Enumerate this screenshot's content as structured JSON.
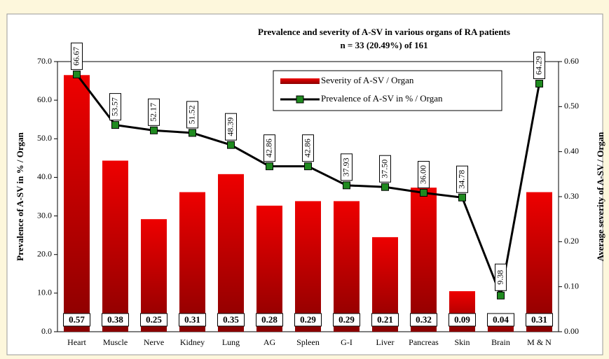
{
  "chart_data": {
    "type": "bar_line",
    "title": "Prevalence  and severity of A-SV in various organs of RA patients",
    "subtitle": "n = 33 (20.49%) of 161",
    "y_label": "Prevalence  of  A-SV in %  / Organ",
    "y2_label": "Average  severity of A-SV  /  Organ",
    "categories": [
      "Heart",
      "Muscle",
      "Nerve",
      "Kidney",
      "Lung",
      "AG",
      "Spleen",
      "G-I",
      "Liver",
      "Pancreas",
      "Skin",
      "Brain",
      "M & N"
    ],
    "series": [
      {
        "name": "Severity of A-SV / Organ",
        "type": "bar",
        "axis": "y2",
        "color": "#ee0000",
        "values": [
          0.57,
          0.38,
          0.25,
          0.31,
          0.35,
          0.28,
          0.29,
          0.29,
          0.21,
          0.32,
          0.09,
          0.04,
          0.31
        ]
      },
      {
        "name": "Prevalence of A-SV in %  / Organ",
        "type": "line",
        "axis": "y",
        "color": "#000000",
        "marker_color": "#1f8a1f",
        "values": [
          66.67,
          53.57,
          52.17,
          51.52,
          48.39,
          42.86,
          42.86,
          37.93,
          37.5,
          36.0,
          34.78,
          9.38,
          64.29
        ],
        "value_labels": [
          "66.67",
          "53.57",
          "52.17",
          "51.52",
          "48.39",
          "42.86",
          "42.86",
          "37.93",
          "37.50",
          "36.00",
          "34.78",
          "9.38",
          "64.29"
        ]
      }
    ],
    "ylim": [
      0,
      70
    ],
    "yticks": [
      {
        "value": 0,
        "label": "0.0"
      },
      {
        "value": 10,
        "label": "10.0"
      },
      {
        "value": 20,
        "label": "20.0"
      },
      {
        "value": 30,
        "label": "30.0"
      },
      {
        "value": 40,
        "label": "40.0"
      },
      {
        "value": 50,
        "label": "50.0"
      },
      {
        "value": 60,
        "label": "60.0"
      },
      {
        "value": 70,
        "label": "70.0"
      }
    ],
    "y2lim": [
      0,
      0.6
    ],
    "y2ticks": [
      {
        "value": 0,
        "label": "0.00"
      },
      {
        "value": 0.1,
        "label": "0.10"
      },
      {
        "value": 0.2,
        "label": "0.20"
      },
      {
        "value": 0.3,
        "label": "0.30"
      },
      {
        "value": 0.4,
        "label": "0.40"
      },
      {
        "value": 0.5,
        "label": "0.50"
      },
      {
        "value": 0.6,
        "label": "0.60"
      }
    ],
    "legend": "top-right"
  }
}
